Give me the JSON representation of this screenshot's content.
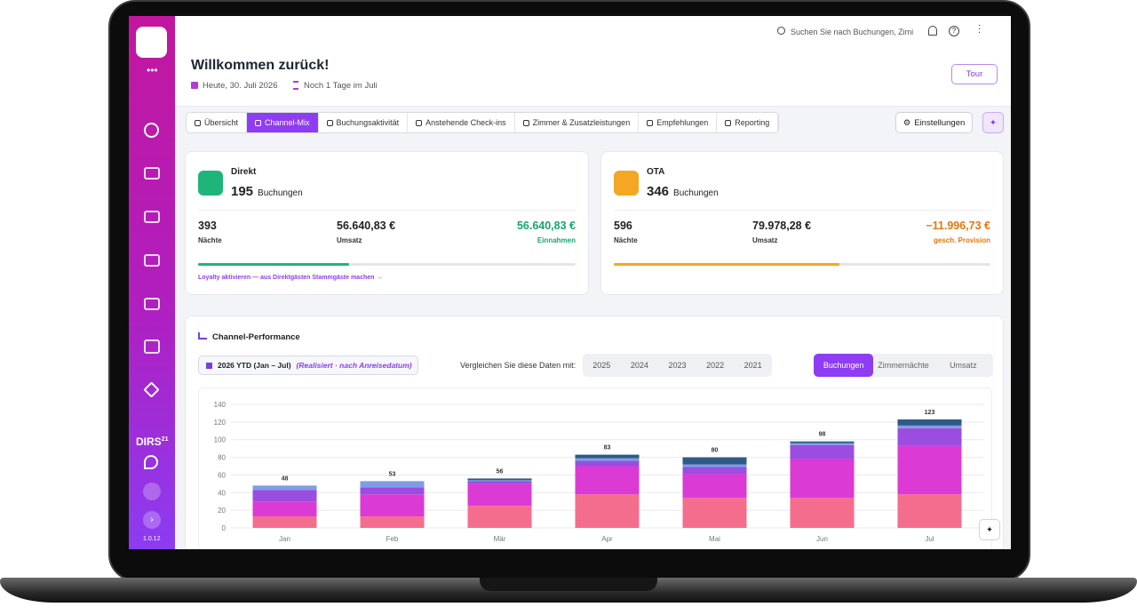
{
  "topbar": {
    "search": "Suchen Sie nach Buchungen, Zimi"
  },
  "sidebar": {
    "brand": "DIRS",
    "brand_sup": "21",
    "version": "1.0.12"
  },
  "header": {
    "title": "Willkommen zurück!",
    "date": "Heute, 30. Juli 2026",
    "month_note": "Noch 1 Tage im Juli",
    "tour": "Tour"
  },
  "tabs": {
    "items": [
      "Übersicht",
      "Channel-Mix",
      "Buchungsaktivität",
      "Anstehende Check-ins",
      "Zimmer & Zusatzleistungen",
      "Empfehlungen",
      "Reporting"
    ],
    "active": 1,
    "settings": "Einstellungen"
  },
  "cards": [
    {
      "title": "Direkt",
      "count": "195",
      "count_unit": "Buchungen",
      "nights": "393",
      "nights_label": "Nächte",
      "revenue": "56.640,83 €",
      "revenue_label": "Umsatz",
      "result": "56.640,83 €",
      "result_label": "Einnahmen",
      "progress": 40,
      "color": "#1fb57a",
      "footer": "Loyalty aktivieren — aus Direktgästen Stammgäste machen →"
    },
    {
      "title": "OTA",
      "count": "346",
      "count_unit": "Buchungen",
      "nights": "596",
      "nights_label": "Nächte",
      "revenue": "79.978,28 €",
      "revenue_label": "Umsatz",
      "result": "−11.996,73 €",
      "result_label": "gesch. Provision",
      "progress": 60,
      "color": "#f5a623"
    }
  ],
  "performance": {
    "title": "Channel-Performance",
    "period": "2026 YTD (Jan – Jul)",
    "period_note": "(Realisiert · nach Anreisedatum)",
    "compare_label": "Vergleichen Sie diese Daten mit:",
    "compare_years": [
      "2025",
      "2024",
      "2023",
      "2022",
      "2021"
    ],
    "metrics": [
      "Buchungen",
      "Zimmernächte",
      "Umsatz"
    ],
    "active_metric": 0,
    "chart_data": {
      "type": "bar",
      "stacked": true,
      "categories": [
        "Jan",
        "Feb",
        "Mär",
        "Apr",
        "Mai",
        "Jun",
        "Jul"
      ],
      "series": [
        {
          "color": "#f56d8d",
          "values": [
            13,
            13,
            25,
            38,
            34,
            34,
            38
          ]
        },
        {
          "color": "#dc3ad4",
          "values": [
            17,
            25,
            25,
            32,
            27,
            44,
            55
          ]
        },
        {
          "color": "#9b4de0",
          "values": [
            13,
            8,
            3,
            6,
            8,
            16,
            20
          ]
        },
        {
          "color": "#7f9de6",
          "values": [
            5,
            7,
            1,
            3,
            3,
            2,
            3
          ]
        },
        {
          "color": "#2f5a85",
          "values": [
            0,
            0,
            2,
            4,
            8,
            2,
            7
          ]
        }
      ],
      "total_labels": [
        48,
        53,
        56,
        83,
        80,
        98,
        123
      ],
      "ylim": [
        0,
        140
      ],
      "yticks": [
        0,
        20,
        40,
        60,
        80,
        100,
        120,
        140
      ],
      "grid": true
    }
  }
}
